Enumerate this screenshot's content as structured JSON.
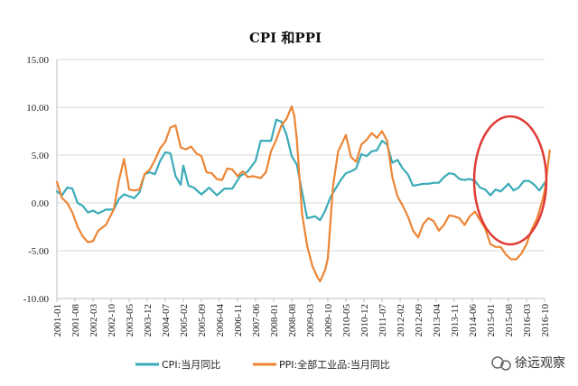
{
  "chart_data": {
    "type": "line",
    "title": "CPI 和PPI",
    "ylim": [
      -10,
      15
    ],
    "yticks": [
      "15.00",
      "10.00",
      "5.00",
      "0.00",
      "-5.00",
      "-10.00"
    ],
    "ytick_values": [
      15,
      10,
      5,
      0,
      -5,
      -10
    ],
    "x_start": "2001-01",
    "x_end": "2016-10",
    "xtick_labels": [
      "2001-01",
      "2001-08",
      "2002-03",
      "2002-10",
      "2003-05",
      "2003-12",
      "2004-07",
      "2005-02",
      "2005-09",
      "2006-04",
      "2006-11",
      "2007-06",
      "2008-01",
      "2008-08",
      "2009-03",
      "2009-10",
      "2010-05",
      "2010-12",
      "2011-07",
      "2012-02",
      "2012-09",
      "2013-04",
      "2013-11",
      "2014-06",
      "2015-01",
      "2015-08",
      "2016-03",
      "2016-10"
    ],
    "series": [
      {
        "name": "CPI:当月同比",
        "color": "#3aaab8",
        "points": [
          [
            "2001-01",
            1.2
          ],
          [
            "2001-03",
            0.8
          ],
          [
            "2001-05",
            1.6
          ],
          [
            "2001-07",
            1.5
          ],
          [
            "2001-09",
            0.0
          ],
          [
            "2001-11",
            -0.3
          ],
          [
            "2002-01",
            -1.0
          ],
          [
            "2002-03",
            -0.8
          ],
          [
            "2002-05",
            -1.1
          ],
          [
            "2002-08",
            -0.7
          ],
          [
            "2002-11",
            -0.7
          ],
          [
            "2003-01",
            0.4
          ],
          [
            "2003-03",
            0.9
          ],
          [
            "2003-05",
            0.7
          ],
          [
            "2003-07",
            0.5
          ],
          [
            "2003-09",
            1.1
          ],
          [
            "2003-11",
            3.0
          ],
          [
            "2004-01",
            3.2
          ],
          [
            "2004-03",
            3.0
          ],
          [
            "2004-05",
            4.4
          ],
          [
            "2004-07",
            5.3
          ],
          [
            "2004-09",
            5.2
          ],
          [
            "2004-11",
            2.8
          ],
          [
            "2005-01",
            1.9
          ],
          [
            "2005-02",
            3.9
          ],
          [
            "2005-04",
            1.8
          ],
          [
            "2005-06",
            1.6
          ],
          [
            "2005-09",
            0.9
          ],
          [
            "2005-12",
            1.6
          ],
          [
            "2006-03",
            0.8
          ],
          [
            "2006-06",
            1.5
          ],
          [
            "2006-09",
            1.5
          ],
          [
            "2006-12",
            2.8
          ],
          [
            "2007-03",
            3.3
          ],
          [
            "2007-06",
            4.4
          ],
          [
            "2007-08",
            6.5
          ],
          [
            "2007-10",
            6.5
          ],
          [
            "2007-12",
            6.5
          ],
          [
            "2008-02",
            8.7
          ],
          [
            "2008-04",
            8.5
          ],
          [
            "2008-06",
            7.1
          ],
          [
            "2008-08",
            4.9
          ],
          [
            "2008-10",
            4.0
          ],
          [
            "2008-12",
            1.2
          ],
          [
            "2009-02",
            -1.6
          ],
          [
            "2009-05",
            -1.4
          ],
          [
            "2009-07",
            -1.8
          ],
          [
            "2009-09",
            -0.8
          ],
          [
            "2009-11",
            0.6
          ],
          [
            "2010-01",
            1.5
          ],
          [
            "2010-03",
            2.4
          ],
          [
            "2010-05",
            3.1
          ],
          [
            "2010-07",
            3.3
          ],
          [
            "2010-09",
            3.6
          ],
          [
            "2010-11",
            5.1
          ],
          [
            "2011-01",
            4.9
          ],
          [
            "2011-03",
            5.4
          ],
          [
            "2011-05",
            5.5
          ],
          [
            "2011-07",
            6.5
          ],
          [
            "2011-09",
            6.1
          ],
          [
            "2011-11",
            4.2
          ],
          [
            "2012-01",
            4.5
          ],
          [
            "2012-03",
            3.6
          ],
          [
            "2012-05",
            3.0
          ],
          [
            "2012-07",
            1.8
          ],
          [
            "2012-09",
            1.9
          ],
          [
            "2012-11",
            2.0
          ],
          [
            "2013-01",
            2.0
          ],
          [
            "2013-03",
            2.1
          ],
          [
            "2013-05",
            2.1
          ],
          [
            "2013-07",
            2.7
          ],
          [
            "2013-09",
            3.1
          ],
          [
            "2013-11",
            3.0
          ],
          [
            "2014-01",
            2.5
          ],
          [
            "2014-03",
            2.4
          ],
          [
            "2014-05",
            2.5
          ],
          [
            "2014-07",
            2.3
          ],
          [
            "2014-09",
            1.6
          ],
          [
            "2014-11",
            1.4
          ],
          [
            "2015-01",
            0.8
          ],
          [
            "2015-03",
            1.4
          ],
          [
            "2015-05",
            1.2
          ],
          [
            "2015-08",
            2.0
          ],
          [
            "2015-10",
            1.3
          ],
          [
            "2015-12",
            1.6
          ],
          [
            "2016-02",
            2.3
          ],
          [
            "2016-04",
            2.3
          ],
          [
            "2016-06",
            1.9
          ],
          [
            "2016-08",
            1.3
          ],
          [
            "2016-10",
            2.1
          ]
        ]
      },
      {
        "name": "PPI:全部工业品:当月同比",
        "color": "#ec8535",
        "points": [
          [
            "2001-01",
            2.2
          ],
          [
            "2001-03",
            0.5
          ],
          [
            "2001-05",
            0.0
          ],
          [
            "2001-07",
            -1.0
          ],
          [
            "2001-09",
            -2.5
          ],
          [
            "2001-11",
            -3.5
          ],
          [
            "2002-01",
            -4.1
          ],
          [
            "2002-03",
            -4.0
          ],
          [
            "2002-05",
            -2.9
          ],
          [
            "2002-08",
            -2.3
          ],
          [
            "2002-11",
            -0.7
          ],
          [
            "2003-01",
            2.3
          ],
          [
            "2003-03",
            4.6
          ],
          [
            "2003-05",
            1.4
          ],
          [
            "2003-07",
            1.3
          ],
          [
            "2003-09",
            1.4
          ],
          [
            "2003-11",
            3.0
          ],
          [
            "2004-01",
            3.5
          ],
          [
            "2004-03",
            4.5
          ],
          [
            "2004-05",
            5.7
          ],
          [
            "2004-07",
            6.4
          ],
          [
            "2004-09",
            7.9
          ],
          [
            "2004-11",
            8.1
          ],
          [
            "2005-01",
            5.8
          ],
          [
            "2005-03",
            5.6
          ],
          [
            "2005-05",
            5.9
          ],
          [
            "2005-07",
            5.2
          ],
          [
            "2005-09",
            4.9
          ],
          [
            "2005-11",
            3.2
          ],
          [
            "2006-01",
            3.1
          ],
          [
            "2006-03",
            2.5
          ],
          [
            "2006-05",
            2.4
          ],
          [
            "2006-07",
            3.6
          ],
          [
            "2006-09",
            3.5
          ],
          [
            "2006-11",
            2.8
          ],
          [
            "2007-01",
            3.3
          ],
          [
            "2007-03",
            2.7
          ],
          [
            "2007-05",
            2.8
          ],
          [
            "2007-08",
            2.6
          ],
          [
            "2007-10",
            3.2
          ],
          [
            "2007-12",
            5.4
          ],
          [
            "2008-02",
            6.6
          ],
          [
            "2008-04",
            8.1
          ],
          [
            "2008-06",
            8.8
          ],
          [
            "2008-08",
            10.1
          ],
          [
            "2008-09",
            9.1
          ],
          [
            "2008-10",
            6.6
          ],
          [
            "2008-12",
            -1.1
          ],
          [
            "2009-02",
            -4.5
          ],
          [
            "2009-04",
            -6.6
          ],
          [
            "2009-06",
            -7.8
          ],
          [
            "2009-07",
            -8.2
          ],
          [
            "2009-09",
            -7.0
          ],
          [
            "2009-10",
            -5.8
          ],
          [
            "2009-12",
            1.7
          ],
          [
            "2010-02",
            5.4
          ],
          [
            "2010-05",
            7.1
          ],
          [
            "2010-07",
            4.8
          ],
          [
            "2010-09",
            4.3
          ],
          [
            "2010-11",
            6.1
          ],
          [
            "2011-01",
            6.6
          ],
          [
            "2011-03",
            7.3
          ],
          [
            "2011-05",
            6.8
          ],
          [
            "2011-07",
            7.5
          ],
          [
            "2011-09",
            6.5
          ],
          [
            "2011-11",
            2.7
          ],
          [
            "2012-01",
            0.7
          ],
          [
            "2012-03",
            -0.3
          ],
          [
            "2012-05",
            -1.4
          ],
          [
            "2012-07",
            -2.9
          ],
          [
            "2012-09",
            -3.6
          ],
          [
            "2012-11",
            -2.2
          ],
          [
            "2013-01",
            -1.6
          ],
          [
            "2013-03",
            -1.9
          ],
          [
            "2013-05",
            -2.9
          ],
          [
            "2013-07",
            -2.3
          ],
          [
            "2013-09",
            -1.3
          ],
          [
            "2013-11",
            -1.4
          ],
          [
            "2014-01",
            -1.6
          ],
          [
            "2014-03",
            -2.3
          ],
          [
            "2014-05",
            -1.4
          ],
          [
            "2014-07",
            -0.9
          ],
          [
            "2014-09",
            -1.8
          ],
          [
            "2014-11",
            -2.7
          ],
          [
            "2015-01",
            -4.3
          ],
          [
            "2015-03",
            -4.6
          ],
          [
            "2015-05",
            -4.6
          ],
          [
            "2015-07",
            -5.4
          ],
          [
            "2015-09",
            -5.9
          ],
          [
            "2015-11",
            -5.9
          ],
          [
            "2016-01",
            -5.3
          ],
          [
            "2016-03",
            -4.3
          ],
          [
            "2016-05",
            -2.8
          ],
          [
            "2016-07",
            -1.7
          ],
          [
            "2016-08",
            -0.8
          ],
          [
            "2016-09",
            0.1
          ],
          [
            "2016-10",
            1.2
          ],
          [
            "2016-11",
            3.3
          ],
          [
            "2016-12",
            5.5
          ]
        ]
      }
    ],
    "annotation": "red ellipse highlighting 2015-2016 rebound"
  },
  "watermark": {
    "text": "徐远观察"
  }
}
